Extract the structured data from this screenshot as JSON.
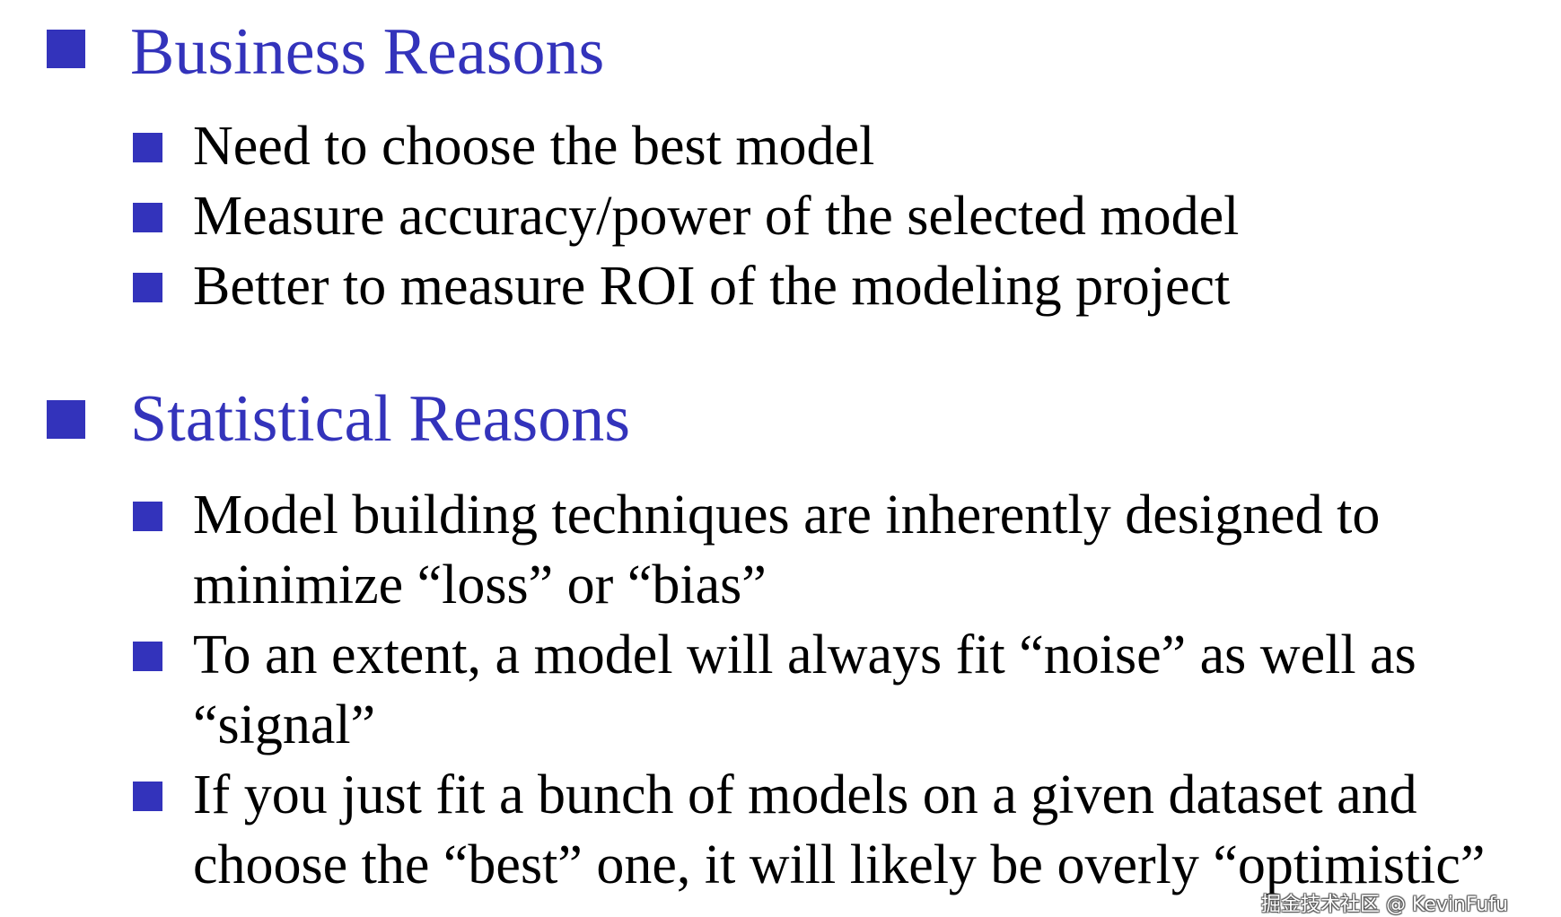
{
  "accent_color": "#3333bb",
  "sections": [
    {
      "heading": "Business Reasons",
      "lines": [
        "Need to choose the best model",
        "Measure accuracy/power of the selected model",
        "Better to measure ROI of the modeling project"
      ]
    },
    {
      "heading": "Statistical Reasons",
      "lines": [
        "Model building techniques are inherently designed to",
        "minimize “loss” or  “bias”",
        "To an extent, a model will always fit “noise” as well as",
        "“signal”",
        "If you just fit a bunch of models on a given dataset and",
        "choose the “best” one, it will likely be overly “optimistic”"
      ]
    }
  ],
  "watermark": "掘金技术社区 @ KevinFufu"
}
